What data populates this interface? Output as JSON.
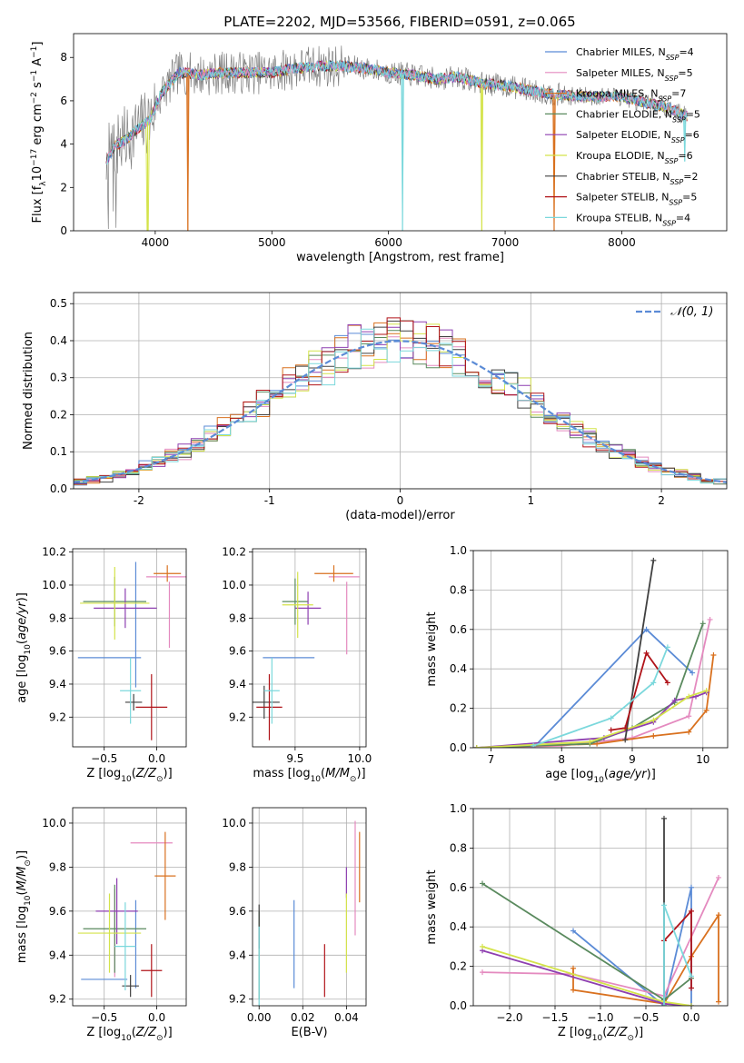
{
  "colors": [
    "#5b8bd6",
    "#e48abf",
    "#d9711f",
    "#5a8a5e",
    "#8e3fb0",
    "#d4e34a",
    "#404040",
    "#b01319",
    "#7bd8dc"
  ],
  "noise_color": "#808080",
  "gaussian_color": "#5b8bd6",
  "legend_labels": [
    "Chabrier MILES, N_SSP=4",
    "Salpeter MILES, N_SSP=5",
    "Kroupa MILES, N_SSP=7",
    "Chabrier ELODIE, N_SSP=5",
    "Salpeter ELODIE, N_SSP=6",
    "Kroupa ELODIE, N_SSP=6",
    "Chabrier STELIB, N_SSP=2",
    "Salpeter STELIB, N_SSP=5",
    "Kroupa STELIB, N_SSP=4"
  ],
  "chart_data": [
    {
      "id": "spectrum",
      "type": "line",
      "title": "PLATE=2202, MJD=53566, FIBERID=0591, z=0.065",
      "xlabel": "wavelength [Angstrom, rest frame]",
      "ylabel": "Flux [f_λ 10^-17 erg cm^-2 s^-1 A^-1]",
      "xlim": [
        3300,
        8900
      ],
      "ylim": [
        0,
        9.1
      ],
      "xticks": [
        4000,
        5000,
        6000,
        7000,
        8000
      ],
      "yticks": [
        0,
        2,
        4,
        6,
        8
      ],
      "continuum": {
        "x": [
          3580,
          3650,
          3750,
          3850,
          3950,
          4050,
          4200,
          4400,
          4600,
          4800,
          5000,
          5200,
          5400,
          5600,
          5800,
          6000,
          6200,
          6400,
          6600,
          6800,
          7000,
          7200,
          7400,
          7600,
          7800,
          8000,
          8200,
          8400,
          8550
        ],
        "y": [
          3.2,
          3.9,
          4.2,
          4.7,
          5.1,
          6.3,
          7.3,
          7.2,
          7.3,
          7.3,
          7.3,
          7.5,
          7.6,
          7.6,
          7.5,
          7.3,
          7.2,
          7.0,
          7.1,
          6.8,
          6.7,
          6.5,
          6.3,
          6.2,
          6.2,
          6.2,
          5.9,
          5.7,
          5.3
        ]
      },
      "absorption_dips": [
        {
          "x": 3935,
          "y": 0.0,
          "series": 5
        },
        {
          "x": 4280,
          "y": 0.0,
          "series": 2
        },
        {
          "x": 6120,
          "y": 0.0,
          "series": 8
        },
        {
          "x": 6800,
          "y": 0.0,
          "series": 5
        },
        {
          "x": 7420,
          "y": 0.0,
          "series": 2
        },
        {
          "x": 8540,
          "y": 3.2,
          "series": 8
        }
      ],
      "legend_position": "right"
    },
    {
      "id": "residuals",
      "type": "histogram",
      "xlabel": "(data-model)/error",
      "ylabel": "Normed distribution",
      "xlim": [
        -2.5,
        2.5
      ],
      "ylim": [
        0,
        0.53
      ],
      "xticks": [
        -2,
        -1,
        0,
        1,
        2
      ],
      "yticks": [
        0.0,
        0.1,
        0.2,
        0.3,
        0.4,
        0.5
      ],
      "bin_edges_start": -2.5,
      "bin_width": 0.1,
      "gaussian_label": "𝒩(0, 1)",
      "gaussian_mean": 0,
      "gaussian_sigma": 1,
      "grid": true,
      "legend_position": "top-right"
    },
    {
      "id": "age-vs-Z",
      "type": "errorbar",
      "xlabel": "Z [log10(Z/Z⊙)]",
      "ylabel": "age  [log10(age/yr)]",
      "xlim": [
        -0.8,
        0.28
      ],
      "ylim": [
        9.02,
        10.22
      ],
      "xticks": [
        -0.5,
        0.0
      ],
      "xtick_labels": [
        "−0.5",
        "0.0"
      ],
      "yticks": [
        9.2,
        9.4,
        9.6,
        9.8,
        10.0,
        10.2
      ],
      "points": [
        {
          "series": 0,
          "x": -0.45,
          "xerr": 0.3,
          "y": 9.56,
          "yerr": 0.0
        },
        {
          "series": 0,
          "x": -0.2,
          "xerr": 0.0,
          "y": 9.76,
          "yerr": 0.38
        },
        {
          "series": 1,
          "x": 0.1,
          "xerr": 0.2,
          "y": 10.05,
          "yerr": 0.0
        },
        {
          "series": 1,
          "x": 0.12,
          "xerr": 0.0,
          "y": 9.82,
          "yerr": 0.2
        },
        {
          "series": 2,
          "x": 0.1,
          "xerr": 0.13,
          "y": 10.07,
          "yerr": 0.05
        },
        {
          "series": 3,
          "x": -0.4,
          "xerr": 0.3,
          "y": 9.9,
          "yerr": 0.15
        },
        {
          "series": 4,
          "x": -0.3,
          "xerr": 0.3,
          "y": 9.86,
          "yerr": 0.12
        },
        {
          "series": 5,
          "x": -0.4,
          "xerr": 0.33,
          "y": 9.89,
          "yerr": 0.22
        },
        {
          "series": 6,
          "x": -0.22,
          "xerr": 0.08,
          "y": 9.29,
          "yerr": 0.05
        },
        {
          "series": 7,
          "x": -0.05,
          "xerr": 0.15,
          "y": 9.26,
          "yerr": 0.2
        },
        {
          "series": 8,
          "x": -0.25,
          "xerr": 0.1,
          "y": 9.36,
          "yerr": 0.2
        }
      ],
      "grid": true
    },
    {
      "id": "age-vs-mass",
      "type": "errorbar",
      "xlabel": "mass [log10(M/M⊙)]",
      "ylabel": "",
      "xlim": [
        9.17,
        10.05
      ],
      "ylim": [
        9.02,
        10.22
      ],
      "xticks": [
        9.5,
        10.0
      ],
      "xtick_labels": [
        "9.5",
        "10.0"
      ],
      "yticks": [
        9.2,
        9.4,
        9.6,
        9.8,
        10.0,
        10.2
      ],
      "points": [
        {
          "series": 0,
          "x": 9.45,
          "xerr": 0.2,
          "y": 9.56,
          "yerr": 0.0
        },
        {
          "series": 1,
          "x": 9.88,
          "xerr": 0.12,
          "y": 10.05,
          "yerr": 0.0
        },
        {
          "series": 1,
          "x": 9.9,
          "xerr": 0.0,
          "y": 9.8,
          "yerr": 0.22
        },
        {
          "series": 2,
          "x": 9.8,
          "xerr": 0.15,
          "y": 10.07,
          "yerr": 0.05
        },
        {
          "series": 3,
          "x": 9.5,
          "xerr": 0.1,
          "y": 9.9,
          "yerr": 0.14
        },
        {
          "series": 4,
          "x": 9.6,
          "xerr": 0.1,
          "y": 9.86,
          "yerr": 0.1
        },
        {
          "series": 5,
          "x": 9.52,
          "xerr": 0.12,
          "y": 9.88,
          "yerr": 0.2
        },
        {
          "series": 6,
          "x": 9.26,
          "xerr": 0.12,
          "y": 9.29,
          "yerr": 0.1
        },
        {
          "series": 7,
          "x": 9.3,
          "xerr": 0.1,
          "y": 9.26,
          "yerr": 0.2
        },
        {
          "series": 8,
          "x": 9.32,
          "xerr": 0.06,
          "y": 9.36,
          "yerr": 0.2
        }
      ],
      "grid": true
    },
    {
      "id": "massweight-vs-age",
      "type": "line",
      "xlabel": "age  [log10(age/yr)]",
      "ylabel": "mass weight",
      "xlim": [
        6.75,
        10.35
      ],
      "ylim": [
        0.0,
        1.0
      ],
      "xticks": [
        7,
        8,
        9,
        10
      ],
      "yticks": [
        0.0,
        0.2,
        0.4,
        0.6,
        0.8,
        1.0
      ],
      "series": [
        {
          "x": [
            6.8,
            7.6,
            9.2,
            9.85
          ],
          "y": [
            0.0,
            0.0,
            0.6,
            0.38
          ]
        },
        {
          "x": [
            6.8,
            8.0,
            9.0,
            9.8,
            10.1
          ],
          "y": [
            0.0,
            0.01,
            0.05,
            0.16,
            0.65
          ]
        },
        {
          "x": [
            6.8,
            8.5,
            9.3,
            9.8,
            10.05,
            10.15
          ],
          "y": [
            0.0,
            0.02,
            0.06,
            0.08,
            0.19,
            0.47
          ]
        },
        {
          "x": [
            6.8,
            8.4,
            9.0,
            9.6,
            10.0
          ],
          "y": [
            0.0,
            0.02,
            0.1,
            0.23,
            0.63
          ]
        },
        {
          "x": [
            6.8,
            8.6,
            9.3,
            9.6,
            9.9,
            10.05
          ],
          "y": [
            0.0,
            0.05,
            0.13,
            0.24,
            0.26,
            0.28
          ]
        },
        {
          "x": [
            6.8,
            8.4,
            9.3,
            9.8,
            10.05
          ],
          "y": [
            0.0,
            0.03,
            0.14,
            0.26,
            0.29
          ]
        },
        {
          "x": [
            8.9,
            9.3
          ],
          "y": [
            0.04,
            0.95
          ]
        },
        {
          "x": [
            8.7,
            8.9,
            9.2,
            9.5
          ],
          "y": [
            0.09,
            0.1,
            0.48,
            0.33
          ]
        },
        {
          "x": [
            7.6,
            8.7,
            9.3,
            9.5
          ],
          "y": [
            0.01,
            0.15,
            0.33,
            0.51
          ]
        }
      ],
      "grid": true
    },
    {
      "id": "mass-vs-Z",
      "type": "errorbar",
      "xlabel": "Z [log10(Z/Z⊙)]",
      "ylabel": "mass [log10(M/M⊙)]",
      "xlim": [
        -0.8,
        0.28
      ],
      "ylim": [
        9.17,
        10.07
      ],
      "xticks": [
        -0.5,
        0.0
      ],
      "xtick_labels": [
        "−0.5",
        "0.0"
      ],
      "yticks": [
        9.2,
        9.4,
        9.6,
        9.8,
        10.0
      ],
      "points": [
        {
          "series": 0,
          "x": -0.5,
          "xerr": 0.22,
          "y": 9.29,
          "yerr": 0.0
        },
        {
          "series": 0,
          "x": -0.2,
          "xerr": 0.0,
          "y": 9.45,
          "yerr": 0.2
        },
        {
          "series": 1,
          "x": -0.05,
          "xerr": 0.2,
          "y": 9.91,
          "yerr": 0.0
        },
        {
          "series": 1,
          "x": -0.4,
          "xerr": 0.0,
          "y": 9.5,
          "yerr": 0.2
        },
        {
          "series": 2,
          "x": 0.08,
          "xerr": 0.1,
          "y": 9.76,
          "yerr": 0.2
        },
        {
          "series": 3,
          "x": -0.4,
          "xerr": 0.3,
          "y": 9.52,
          "yerr": 0.2
        },
        {
          "series": 4,
          "x": -0.38,
          "xerr": 0.2,
          "y": 9.6,
          "yerr": 0.15
        },
        {
          "series": 5,
          "x": -0.45,
          "xerr": 0.3,
          "y": 9.5,
          "yerr": 0.18
        },
        {
          "series": 6,
          "x": -0.25,
          "xerr": 0.08,
          "y": 9.26,
          "yerr": 0.05
        },
        {
          "series": 7,
          "x": -0.05,
          "xerr": 0.1,
          "y": 9.33,
          "yerr": 0.12
        },
        {
          "series": 8,
          "x": -0.3,
          "xerr": 0.1,
          "y": 9.44,
          "yerr": 0.2
        }
      ],
      "grid": true
    },
    {
      "id": "mass-vs-ebv",
      "type": "errorbar",
      "xlabel": "E(B-V)",
      "ylabel": "",
      "xlim": [
        -0.003,
        0.049
      ],
      "ylim": [
        9.17,
        10.07
      ],
      "xticks": [
        0.0,
        0.02,
        0.04
      ],
      "xtick_labels": [
        "0.00",
        "0.02",
        "0.04"
      ],
      "yticks": [
        9.2,
        9.4,
        9.6,
        9.8,
        10.0
      ],
      "points": [
        {
          "series": 0,
          "x": 0.016,
          "xerr": 0.0,
          "y": 9.45,
          "yerr": 0.2
        },
        {
          "series": 1,
          "x": 0.044,
          "xerr": 0.0,
          "y": 9.75,
          "yerr": 0.26
        },
        {
          "series": 2,
          "x": 0.046,
          "xerr": 0.0,
          "y": 9.8,
          "yerr": 0.16
        },
        {
          "series": 3,
          "x": 0.0,
          "xerr": 0.0,
          "y": 9.4,
          "yerr": 0.2
        },
        {
          "series": 4,
          "x": 0.04,
          "xerr": 0.0,
          "y": 9.73,
          "yerr": 0.07
        },
        {
          "series": 5,
          "x": 0.04,
          "xerr": 0.0,
          "y": 9.5,
          "yerr": 0.18
        },
        {
          "series": 6,
          "x": 0.0,
          "xerr": 0.0,
          "y": 9.53,
          "yerr": 0.1
        },
        {
          "series": 7,
          "x": 0.03,
          "xerr": 0.0,
          "y": 9.33,
          "yerr": 0.12
        },
        {
          "series": 8,
          "x": 0.0,
          "xerr": 0.0,
          "y": 9.33,
          "yerr": 0.2
        }
      ],
      "grid": true
    },
    {
      "id": "massweight-vs-Z",
      "type": "line",
      "xlabel": "Z [log10(Z/Z⊙)]",
      "ylabel": "mass weight",
      "xlim": [
        -2.4,
        0.4
      ],
      "ylim": [
        0.0,
        1.0
      ],
      "xticks": [
        -2.0,
        -1.5,
        -1.0,
        -0.5,
        0.0
      ],
      "xtick_labels": [
        "−2.0",
        "−1.5",
        "−1.0",
        "−0.5",
        "0.0"
      ],
      "yticks": [
        0.0,
        0.2,
        0.4,
        0.6,
        0.8,
        1.0
      ],
      "series": [
        {
          "x": [
            -1.3,
            -0.3,
            0.0,
            0.0
          ],
          "y": [
            0.38,
            0.0,
            0.6,
            0.0
          ]
        },
        {
          "x": [
            -2.3,
            -1.3,
            -0.3,
            0.3
          ],
          "y": [
            0.17,
            0.16,
            0.05,
            0.65
          ]
        },
        {
          "x": [
            -1.3,
            -1.3,
            -0.3,
            0.0,
            0.3,
            0.3
          ],
          "y": [
            0.19,
            0.08,
            0.01,
            0.25,
            0.46,
            0.02
          ]
        },
        {
          "x": [
            -2.3,
            -0.3,
            0.0
          ],
          "y": [
            0.62,
            0.03,
            0.14
          ]
        },
        {
          "x": [
            -2.3,
            -0.3,
            0.0
          ],
          "y": [
            0.28,
            0.01,
            0.0
          ]
        },
        {
          "x": [
            -2.3,
            -0.3,
            0.0
          ],
          "y": [
            0.3,
            0.02,
            0.0
          ]
        },
        {
          "x": [
            -0.3,
            -0.3
          ],
          "y": [
            0.0,
            0.95
          ]
        },
        {
          "x": [
            -0.3,
            0.0,
            0.0
          ],
          "y": [
            0.33,
            0.48,
            0.09
          ]
        },
        {
          "x": [
            -0.3,
            -0.3,
            0.0
          ],
          "y": [
            0.0,
            0.51,
            0.15
          ]
        }
      ],
      "grid": true
    }
  ]
}
